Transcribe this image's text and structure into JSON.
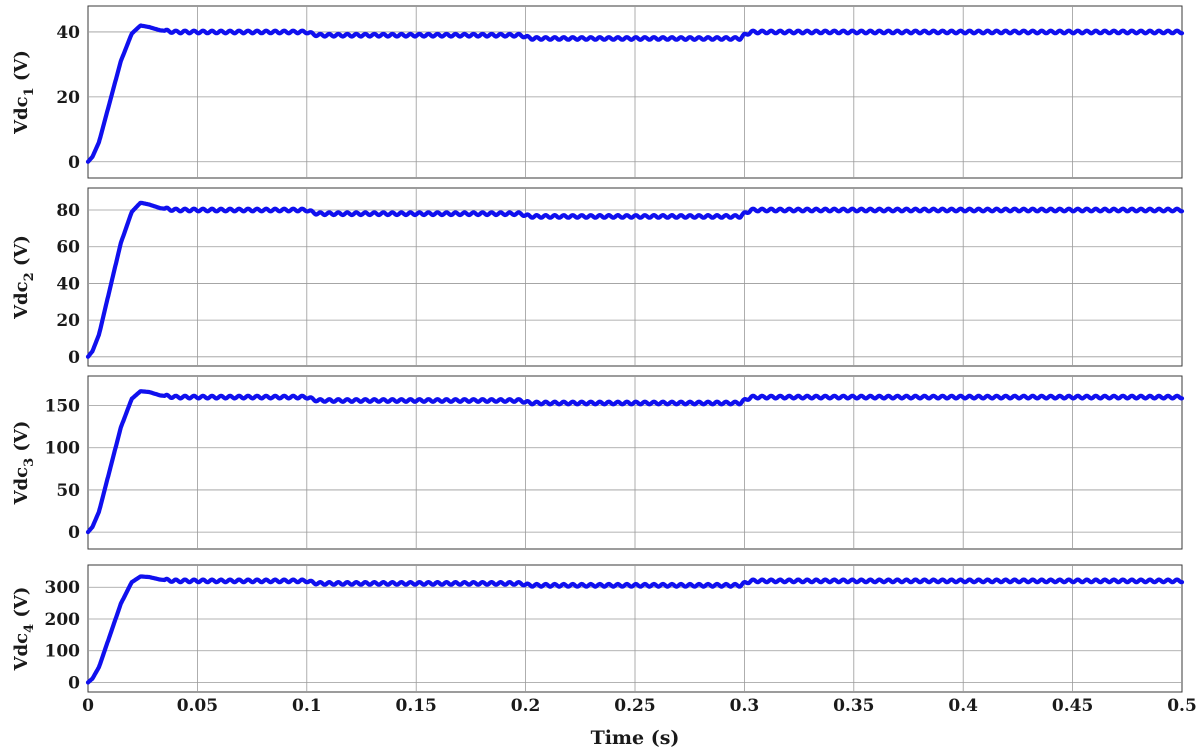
{
  "colors": {
    "series": "#1010ee",
    "grid": "#9a9a9a",
    "frame": "#3a3a3a"
  },
  "xlabel": "Time (s)",
  "x_ticks": [
    "0",
    "0.05",
    "0.1",
    "0.15",
    "0.2",
    "0.25",
    "0.3",
    "0.35",
    "0.4",
    "0.45",
    "0.5"
  ],
  "chart_data": [
    {
      "type": "line",
      "ylabel": {
        "base": "Vdc",
        "sub": "1",
        "unit": "(V)"
      },
      "xlim": [
        0,
        0.5
      ],
      "ylim": [
        -5,
        48
      ],
      "yticks": [
        0,
        20,
        40
      ],
      "grid": true,
      "series": [
        {
          "x": [
            0,
            0.002,
            0.005,
            0.01,
            0.015,
            0.02,
            0.024,
            0.028,
            0.033,
            0.04,
            0.05,
            0.1,
            0.102,
            0.105,
            0.198,
            0.2,
            0.203,
            0.298,
            0.3,
            0.303,
            0.5
          ],
          "y": [
            0,
            1.5,
            6,
            18.5,
            31,
            39.5,
            42,
            41.5,
            40.5,
            40,
            40,
            40,
            39.5,
            39,
            39,
            38.5,
            38,
            38,
            39,
            40,
            40
          ]
        }
      ]
    },
    {
      "type": "line",
      "ylabel": {
        "base": "Vdc",
        "sub": "2",
        "unit": "(V)"
      },
      "xlim": [
        0,
        0.5
      ],
      "ylim": [
        -5,
        92
      ],
      "yticks": [
        0,
        20,
        40,
        60,
        80
      ],
      "grid": true,
      "series": [
        {
          "x": [
            0,
            0.002,
            0.005,
            0.01,
            0.015,
            0.02,
            0.024,
            0.028,
            0.033,
            0.04,
            0.05,
            0.1,
            0.102,
            0.105,
            0.198,
            0.2,
            0.203,
            0.298,
            0.3,
            0.303,
            0.5
          ],
          "y": [
            0,
            3,
            12,
            37,
            62,
            79,
            84,
            83,
            81,
            80,
            80,
            80,
            79,
            78,
            78,
            77,
            76.5,
            76.5,
            78,
            80,
            80
          ]
        }
      ]
    },
    {
      "type": "line",
      "ylabel": {
        "base": "Vdc",
        "sub": "3",
        "unit": "(V)"
      },
      "xlim": [
        0,
        0.5
      ],
      "ylim": [
        -20,
        185
      ],
      "yticks": [
        0,
        50,
        100,
        150
      ],
      "grid": true,
      "series": [
        {
          "x": [
            0,
            0.002,
            0.005,
            0.01,
            0.015,
            0.02,
            0.024,
            0.028,
            0.033,
            0.04,
            0.05,
            0.1,
            0.102,
            0.105,
            0.198,
            0.2,
            0.203,
            0.298,
            0.3,
            0.303,
            0.5
          ],
          "y": [
            0,
            6,
            24,
            74,
            124,
            158,
            167,
            166,
            162,
            160,
            160,
            160,
            158,
            156,
            156,
            154,
            153,
            153,
            156,
            160,
            160
          ]
        }
      ]
    },
    {
      "type": "line",
      "ylabel": {
        "base": "Vdc",
        "sub": "4",
        "unit": "(V)"
      },
      "xlim": [
        0,
        0.5
      ],
      "ylim": [
        -30,
        370
      ],
      "yticks": [
        0,
        100,
        200,
        300
      ],
      "grid": true,
      "series": [
        {
          "x": [
            0,
            0.002,
            0.005,
            0.01,
            0.015,
            0.02,
            0.024,
            0.028,
            0.033,
            0.04,
            0.05,
            0.1,
            0.102,
            0.105,
            0.198,
            0.2,
            0.203,
            0.298,
            0.3,
            0.303,
            0.5
          ],
          "y": [
            0,
            12,
            48,
            148,
            248,
            316,
            334,
            332,
            324,
            320,
            320,
            320,
            316,
            312,
            312,
            308,
            306,
            306,
            312,
            320,
            320
          ]
        }
      ]
    }
  ]
}
